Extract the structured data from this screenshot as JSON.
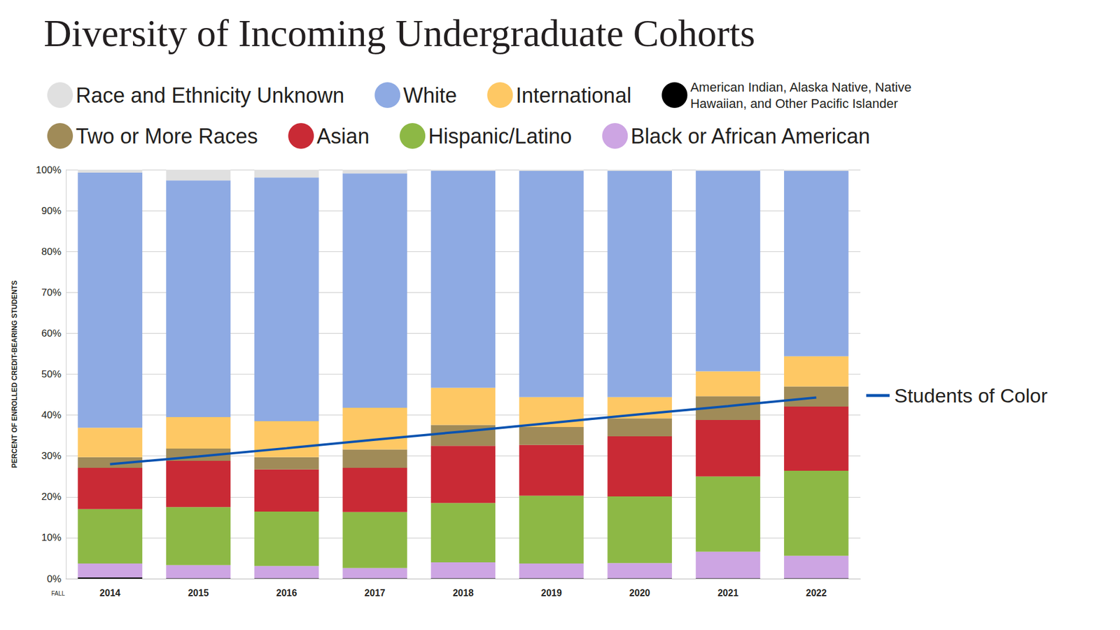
{
  "chart_data": {
    "type": "bar",
    "title": "Diversity of Incoming Undergraduate Cohorts",
    "y_label": "PERCENT OF ENROLLED CREDIT-BEARING STUDENTS",
    "annotation": "FALL",
    "categories": [
      "2014",
      "2015",
      "2016",
      "2017",
      "2018",
      "2019",
      "2020",
      "2021",
      "2022"
    ],
    "stacked": true,
    "grid": true,
    "legend": "top",
    "ylim": [
      0,
      100
    ],
    "yticks": [
      {
        "value": 0,
        "label": "0%"
      },
      {
        "value": 10,
        "label": "10%"
      },
      {
        "value": 20,
        "label": "20%"
      },
      {
        "value": 30,
        "label": "30%"
      },
      {
        "value": 40,
        "label": "40%"
      },
      {
        "value": 50,
        "label": "50%"
      },
      {
        "value": 60,
        "label": "60%"
      },
      {
        "value": 70,
        "label": "70%"
      },
      {
        "value": 80,
        "label": "80%"
      },
      {
        "value": 90,
        "label": "90%"
      },
      {
        "value": 100,
        "label": "100%"
      }
    ],
    "series": [
      {
        "name": "American Indian, Alaska Native, Native Hawaiian, and Other Pacific Islander",
        "type": "bar",
        "color": "#000000",
        "values": [
          0.3,
          0.1,
          0.1,
          0.1,
          0.1,
          0.1,
          0.1,
          0.1,
          0.1
        ]
      },
      {
        "name": "Black or African American",
        "type": "bar",
        "color": "#cda5e3",
        "values": [
          3.4,
          3.2,
          3.0,
          2.5,
          3.9,
          3.6,
          3.7,
          6.5,
          5.5
        ]
      },
      {
        "name": "Hispanic/Latino",
        "type": "bar",
        "color": "#8db845",
        "values": [
          13.3,
          14.2,
          13.3,
          13.7,
          14.5,
          16.6,
          16.3,
          18.4,
          20.8
        ]
      },
      {
        "name": "Asian",
        "type": "bar",
        "color": "#c92a35",
        "values": [
          10.1,
          11.3,
          10.3,
          10.8,
          14.0,
          12.4,
          14.7,
          13.8,
          15.7
        ]
      },
      {
        "name": "Two or More Races",
        "type": "bar",
        "color": "#a08b58",
        "values": [
          2.6,
          3.0,
          3.0,
          4.5,
          5.1,
          4.4,
          4.4,
          5.8,
          4.9
        ]
      },
      {
        "name": "International",
        "type": "bar",
        "color": "#fec864",
        "values": [
          7.2,
          7.7,
          8.8,
          10.2,
          9.1,
          7.3,
          5.2,
          6.1,
          7.4
        ]
      },
      {
        "name": "White",
        "type": "bar",
        "color": "#8eaae3",
        "values": [
          62.4,
          57.9,
          59.6,
          57.3,
          53.1,
          55.3,
          55.3,
          49.1,
          45.3
        ]
      },
      {
        "name": "Race and Ethnicity Unknown",
        "type": "bar",
        "color": "#e0e0e0",
        "values": [
          0.7,
          2.6,
          1.9,
          0.9,
          0.2,
          0.3,
          0.3,
          0.2,
          0.3
        ]
      },
      {
        "name": "Students of Color",
        "type": "line",
        "color": "#0a53b0",
        "values": [
          28.0,
          29.9,
          31.9,
          34.0,
          36.0,
          38.1,
          40.2,
          42.2,
          44.3
        ]
      }
    ]
  }
}
